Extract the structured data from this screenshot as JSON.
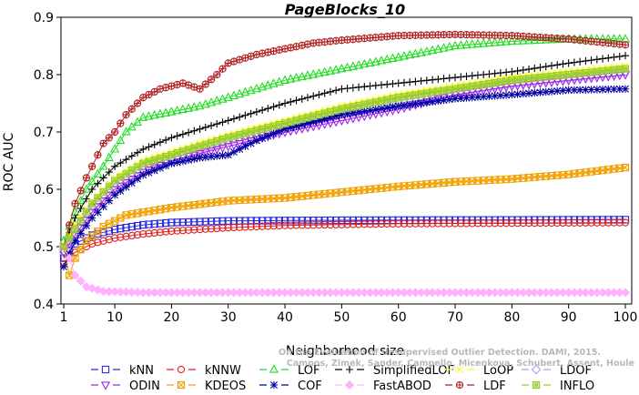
{
  "chart_data": {
    "type": "line",
    "title": "PageBlocks_10",
    "xlabel": "Neighborhood size",
    "ylabel": "ROC AUC",
    "xlim": [
      1,
      100
    ],
    "ylim": [
      0.4,
      0.9
    ],
    "xticks": [
      "1",
      "10",
      "20",
      "30",
      "40",
      "50",
      "60",
      "70",
      "80",
      "90",
      "100"
    ],
    "yticks": [
      "0.4",
      "0.5",
      "0.6",
      "0.7",
      "0.8",
      "0.9"
    ],
    "grid": false,
    "legend_position": "bottom",
    "watermark": [
      "Campos, Zimek, Sander, Campello, Micenkova, Schubert, Assent, Houle",
      "On the Evaluation of Unsupervised Outlier Detection. DAMI, 2015."
    ],
    "series": [
      {
        "name": "kNN",
        "color": "#2a2ae0",
        "marker": "square",
        "anchors": [
          [
            1,
            0.48
          ],
          [
            3,
            0.505
          ],
          [
            6,
            0.52
          ],
          [
            10,
            0.53
          ],
          [
            15,
            0.538
          ],
          [
            20,
            0.542
          ],
          [
            30,
            0.545
          ],
          [
            50,
            0.546
          ],
          [
            100,
            0.547
          ]
        ]
      },
      {
        "name": "kNNW",
        "color": "#e02020",
        "marker": "circle",
        "anchors": [
          [
            1,
            0.47
          ],
          [
            3,
            0.49
          ],
          [
            6,
            0.505
          ],
          [
            10,
            0.515
          ],
          [
            15,
            0.522
          ],
          [
            20,
            0.527
          ],
          [
            30,
            0.533
          ],
          [
            40,
            0.537
          ],
          [
            60,
            0.54
          ],
          [
            100,
            0.542
          ]
        ]
      },
      {
        "name": "LOF",
        "color": "#22dd22",
        "marker": "triangle",
        "anchors": [
          [
            1,
            0.51
          ],
          [
            3,
            0.56
          ],
          [
            5,
            0.6
          ],
          [
            8,
            0.64
          ],
          [
            12,
            0.7
          ],
          [
            15,
            0.725
          ],
          [
            20,
            0.735
          ],
          [
            25,
            0.745
          ],
          [
            30,
            0.76
          ],
          [
            40,
            0.79
          ],
          [
            50,
            0.81
          ],
          [
            60,
            0.83
          ],
          [
            70,
            0.85
          ],
          [
            80,
            0.858
          ],
          [
            90,
            0.862
          ],
          [
            100,
            0.862
          ]
        ]
      },
      {
        "name": "SimplifiedLOF",
        "color": "#000000",
        "marker": "plus",
        "anchors": [
          [
            1,
            0.5
          ],
          [
            3,
            0.55
          ],
          [
            6,
            0.6
          ],
          [
            10,
            0.64
          ],
          [
            15,
            0.67
          ],
          [
            20,
            0.69
          ],
          [
            30,
            0.72
          ],
          [
            40,
            0.75
          ],
          [
            50,
            0.775
          ],
          [
            60,
            0.785
          ],
          [
            70,
            0.795
          ],
          [
            80,
            0.805
          ],
          [
            90,
            0.82
          ],
          [
            100,
            0.833
          ]
        ]
      },
      {
        "name": "LoOP",
        "color": "#ffff00",
        "marker": "x",
        "anchors": [
          [
            1,
            0.5
          ],
          [
            3,
            0.54
          ],
          [
            6,
            0.58
          ],
          [
            10,
            0.62
          ],
          [
            15,
            0.65
          ],
          [
            20,
            0.665
          ],
          [
            30,
            0.695
          ],
          [
            40,
            0.72
          ],
          [
            50,
            0.745
          ],
          [
            60,
            0.765
          ],
          [
            70,
            0.78
          ],
          [
            80,
            0.795
          ],
          [
            90,
            0.805
          ],
          [
            100,
            0.815
          ]
        ]
      },
      {
        "name": "LDOF",
        "color": "#b0a0ee",
        "marker": "diamond",
        "anchors": [
          [
            1,
            0.49
          ],
          [
            3,
            0.53
          ],
          [
            6,
            0.57
          ],
          [
            10,
            0.61
          ],
          [
            15,
            0.64
          ],
          [
            20,
            0.655
          ],
          [
            30,
            0.685
          ],
          [
            40,
            0.71
          ],
          [
            50,
            0.735
          ],
          [
            60,
            0.755
          ],
          [
            70,
            0.77
          ],
          [
            80,
            0.785
          ],
          [
            90,
            0.795
          ],
          [
            100,
            0.805
          ]
        ]
      },
      {
        "name": "ODIN",
        "color": "#a020f0",
        "marker": "triangle-down",
        "anchors": [
          [
            1,
            0.49
          ],
          [
            3,
            0.52
          ],
          [
            6,
            0.56
          ],
          [
            10,
            0.6
          ],
          [
            15,
            0.63
          ],
          [
            20,
            0.65
          ],
          [
            30,
            0.675
          ],
          [
            40,
            0.7
          ],
          [
            50,
            0.72
          ],
          [
            60,
            0.74
          ],
          [
            70,
            0.765
          ],
          [
            80,
            0.78
          ],
          [
            90,
            0.79
          ],
          [
            100,
            0.8
          ]
        ]
      },
      {
        "name": "KDEOS",
        "color": "#f0a000",
        "marker": "square-x",
        "anchors": [
          [
            1,
            0.5
          ],
          [
            2,
            0.45
          ],
          [
            3,
            0.48
          ],
          [
            5,
            0.51
          ],
          [
            8,
            0.535
          ],
          [
            12,
            0.555
          ],
          [
            20,
            0.568
          ],
          [
            30,
            0.58
          ],
          [
            40,
            0.585
          ],
          [
            50,
            0.595
          ],
          [
            60,
            0.605
          ],
          [
            70,
            0.613
          ],
          [
            80,
            0.618
          ],
          [
            90,
            0.626
          ],
          [
            100,
            0.638
          ]
        ]
      },
      {
        "name": "COF",
        "color": "#0000a0",
        "marker": "star",
        "anchors": [
          [
            1,
            0.465
          ],
          [
            3,
            0.51
          ],
          [
            6,
            0.55
          ],
          [
            10,
            0.59
          ],
          [
            15,
            0.625
          ],
          [
            20,
            0.645
          ],
          [
            25,
            0.655
          ],
          [
            30,
            0.66
          ],
          [
            35,
            0.685
          ],
          [
            40,
            0.705
          ],
          [
            50,
            0.73
          ],
          [
            60,
            0.745
          ],
          [
            70,
            0.758
          ],
          [
            80,
            0.765
          ],
          [
            90,
            0.773
          ],
          [
            100,
            0.775
          ]
        ]
      },
      {
        "name": "FastABOD",
        "color": "#ffb0ff",
        "marker": "diamond-filled",
        "anchors": [
          [
            1,
            0.5
          ],
          [
            2,
            0.48
          ],
          [
            3,
            0.45
          ],
          [
            5,
            0.43
          ],
          [
            8,
            0.422
          ],
          [
            15,
            0.42
          ],
          [
            100,
            0.42
          ]
        ]
      },
      {
        "name": "LDF",
        "color": "#b22222",
        "marker": "circle-plus",
        "anchors": [
          [
            1,
            0.5
          ],
          [
            3,
            0.575
          ],
          [
            5,
            0.62
          ],
          [
            8,
            0.68
          ],
          [
            10,
            0.7
          ],
          [
            12,
            0.73
          ],
          [
            15,
            0.76
          ],
          [
            18,
            0.775
          ],
          [
            22,
            0.785
          ],
          [
            25,
            0.775
          ],
          [
            28,
            0.8
          ],
          [
            30,
            0.82
          ],
          [
            35,
            0.835
          ],
          [
            40,
            0.845
          ],
          [
            45,
            0.855
          ],
          [
            50,
            0.86
          ],
          [
            60,
            0.868
          ],
          [
            70,
            0.87
          ],
          [
            80,
            0.868
          ],
          [
            90,
            0.862
          ],
          [
            100,
            0.852
          ]
        ]
      },
      {
        "name": "INFLO",
        "color": "#9acd32",
        "marker": "square-star",
        "anchors": [
          [
            1,
            0.5
          ],
          [
            3,
            0.53
          ],
          [
            6,
            0.575
          ],
          [
            10,
            0.615
          ],
          [
            15,
            0.645
          ],
          [
            20,
            0.66
          ],
          [
            30,
            0.69
          ],
          [
            40,
            0.715
          ],
          [
            50,
            0.74
          ],
          [
            60,
            0.76
          ],
          [
            70,
            0.775
          ],
          [
            80,
            0.79
          ],
          [
            90,
            0.8
          ],
          [
            100,
            0.81
          ]
        ]
      }
    ]
  }
}
